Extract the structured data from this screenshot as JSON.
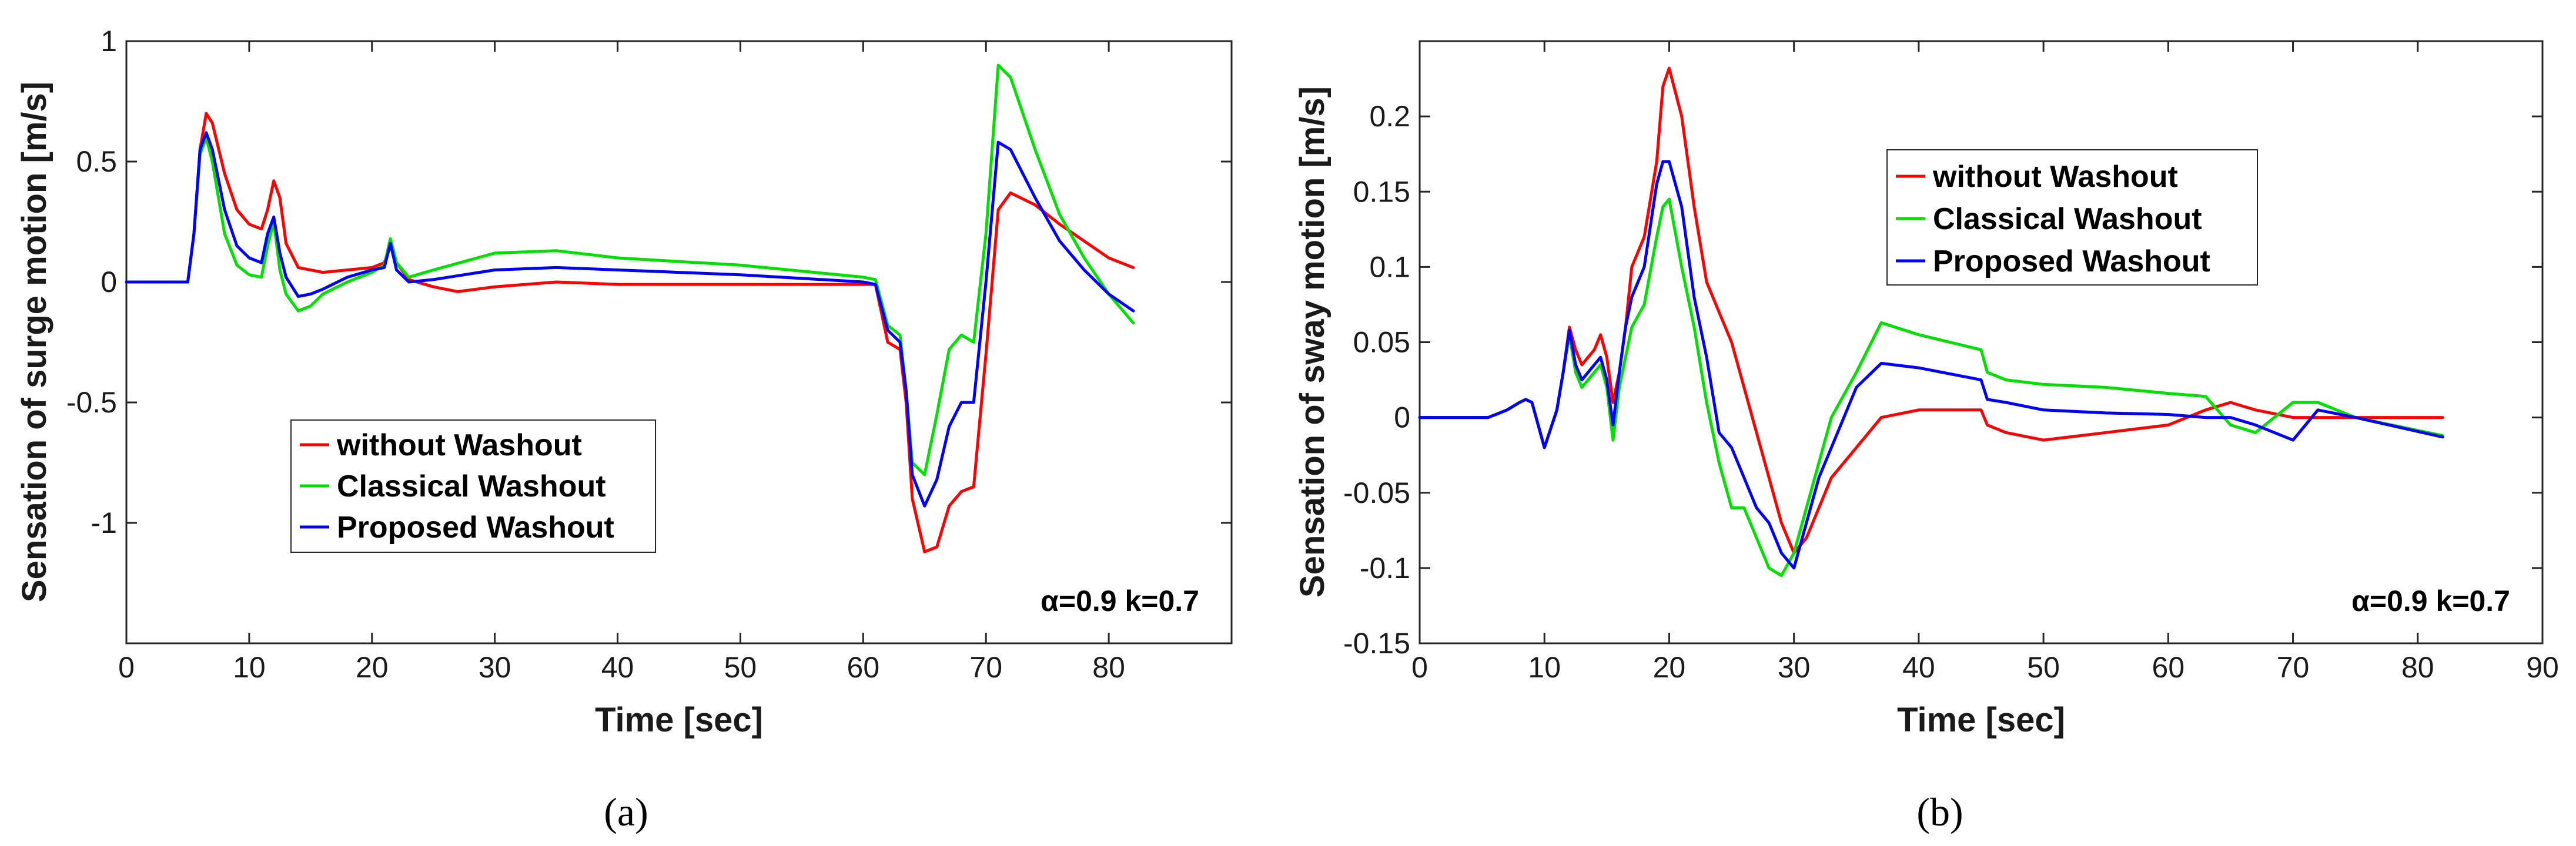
{
  "chart_data": [
    {
      "type": "line",
      "panel": "(a)",
      "title": "",
      "xlabel": "Time [sec]",
      "ylabel": "Sensation of surge motion [m/s]",
      "xlim": [
        0,
        90
      ],
      "ylim": [
        -1.5,
        1
      ],
      "xticks": [
        0,
        10,
        20,
        30,
        40,
        50,
        60,
        70,
        80
      ],
      "xtick_labels": [
        "0",
        "10",
        "20",
        "30",
        "40",
        "50",
        "60",
        "70",
        "80"
      ],
      "yticks": [
        -1,
        -0.5,
        0,
        0.5,
        1
      ],
      "ytick_labels": [
        "-1",
        "-0.5",
        "0",
        "0.5",
        "1"
      ],
      "annotation": "α=0.9  k=0.7",
      "legend": [
        "without Washout",
        "Classical Washout",
        "Proposed Washout"
      ],
      "series": [
        {
          "name": "without Washout",
          "color": "#ff0000",
          "x": [
            0,
            5,
            5.5,
            6,
            6.5,
            7,
            8,
            9,
            10,
            11,
            11.5,
            12,
            12.5,
            13,
            14,
            16,
            18,
            20,
            21,
            21.5,
            22,
            23,
            25,
            27,
            30,
            35,
            40,
            50,
            60,
            61,
            62,
            63,
            63.5,
            64,
            65,
            66,
            67,
            68,
            69,
            70,
            71,
            72,
            74,
            76,
            78,
            80,
            82
          ],
          "y": [
            0,
            0,
            0.2,
            0.55,
            0.7,
            0.66,
            0.45,
            0.3,
            0.24,
            0.22,
            0.3,
            0.42,
            0.35,
            0.16,
            0.06,
            0.04,
            0.05,
            0.06,
            0.08,
            0.15,
            0.08,
            0.01,
            -0.02,
            -0.04,
            -0.02,
            0,
            -0.01,
            -0.01,
            -0.01,
            -0.01,
            -0.25,
            -0.28,
            -0.5,
            -0.9,
            -1.12,
            -1.1,
            -0.93,
            -0.87,
            -0.85,
            -0.3,
            0.3,
            0.37,
            0.32,
            0.24,
            0.17,
            0.1,
            0.06
          ]
        },
        {
          "name": "Classical Washout",
          "color": "#00e000",
          "x": [
            0,
            5,
            5.5,
            6,
            6.5,
            7,
            8,
            9,
            10,
            11,
            11.5,
            12,
            12.5,
            13,
            14,
            15,
            16,
            18,
            20,
            21,
            21.5,
            22,
            23,
            25,
            30,
            35,
            40,
            50,
            60,
            61,
            62,
            63,
            63.5,
            64,
            65,
            66,
            67,
            68,
            69,
            70,
            71,
            72,
            74,
            76,
            78,
            80,
            82
          ],
          "y": [
            0,
            0,
            0.2,
            0.53,
            0.6,
            0.5,
            0.2,
            0.07,
            0.03,
            0.02,
            0.15,
            0.25,
            0.05,
            -0.05,
            -0.12,
            -0.1,
            -0.05,
            0,
            0.04,
            0.07,
            0.18,
            0.08,
            0.02,
            0.05,
            0.12,
            0.13,
            0.1,
            0.07,
            0.02,
            0.01,
            -0.18,
            -0.22,
            -0.45,
            -0.75,
            -0.8,
            -0.55,
            -0.28,
            -0.22,
            -0.25,
            0.2,
            0.9,
            0.85,
            0.55,
            0.28,
            0.1,
            -0.05,
            -0.17
          ]
        },
        {
          "name": "Proposed Washout",
          "color": "#0000ff",
          "x": [
            0,
            5,
            5.5,
            6,
            6.5,
            7,
            8,
            9,
            10,
            11,
            11.5,
            12,
            12.5,
            13,
            14,
            15,
            16,
            18,
            20,
            21,
            21.5,
            22,
            23,
            25,
            30,
            35,
            40,
            50,
            60,
            61,
            62,
            63,
            63.5,
            64,
            65,
            66,
            67,
            68,
            69,
            70,
            71,
            72,
            74,
            76,
            78,
            80,
            82
          ],
          "y": [
            0,
            0,
            0.2,
            0.55,
            0.62,
            0.55,
            0.3,
            0.15,
            0.1,
            0.08,
            0.2,
            0.27,
            0.12,
            0.02,
            -0.06,
            -0.05,
            -0.03,
            0.02,
            0.05,
            0.06,
            0.16,
            0.05,
            0,
            0.01,
            0.05,
            0.06,
            0.05,
            0.03,
            0,
            -0.01,
            -0.2,
            -0.25,
            -0.45,
            -0.8,
            -0.93,
            -0.82,
            -0.6,
            -0.5,
            -0.5,
            0,
            0.58,
            0.55,
            0.35,
            0.17,
            0.05,
            -0.05,
            -0.12
          ]
        }
      ]
    },
    {
      "type": "line",
      "panel": "(b)",
      "title": "",
      "xlabel": "Time [sec]",
      "ylabel": "Sensation of sway motion [m/s]",
      "xlim": [
        0,
        90
      ],
      "ylim": [
        -0.15,
        0.25
      ],
      "xticks": [
        0,
        10,
        20,
        30,
        40,
        50,
        60,
        70,
        80,
        90
      ],
      "xtick_labels": [
        "0",
        "10",
        "20",
        "30",
        "40",
        "50",
        "60",
        "70",
        "80",
        "90"
      ],
      "yticks": [
        -0.15,
        -0.1,
        -0.05,
        0,
        0.05,
        0.1,
        0.15,
        0.2
      ],
      "ytick_labels": [
        "-0.15",
        "-0.1",
        "-0.05",
        "0",
        "0.05",
        "0.1",
        "0.15",
        "0.2"
      ],
      "annotation": "α=0.9  k=0.7",
      "legend": [
        "without Washout",
        "Classical Washout",
        "Proposed Washout"
      ],
      "series": [
        {
          "name": "without Washout",
          "color": "#ff0000",
          "x": [
            0,
            5.5,
            7,
            8,
            8.5,
            9,
            10,
            11,
            11.5,
            12,
            12.5,
            13,
            14,
            14.5,
            15,
            15.5,
            16,
            16.5,
            17,
            18,
            19,
            19.5,
            20,
            21,
            22,
            23,
            24,
            25,
            26,
            28,
            29,
            30,
            31,
            32,
            33,
            35,
            37,
            40,
            45,
            45.5,
            47,
            50,
            55,
            60,
            63,
            65,
            67,
            70,
            72,
            75,
            82
          ],
          "y": [
            0,
            0,
            0.005,
            0.01,
            0.012,
            0.01,
            -0.02,
            0.005,
            0.03,
            0.06,
            0.045,
            0.035,
            0.045,
            0.055,
            0.04,
            0.01,
            0.03,
            0.06,
            0.1,
            0.12,
            0.17,
            0.22,
            0.232,
            0.2,
            0.14,
            0.09,
            0.07,
            0.05,
            0.02,
            -0.04,
            -0.07,
            -0.09,
            -0.08,
            -0.06,
            -0.04,
            -0.02,
            0,
            0.005,
            0.005,
            -0.005,
            -0.01,
            -0.015,
            -0.01,
            -0.005,
            0.005,
            0.01,
            0.005,
            0,
            0,
            0,
            0
          ]
        },
        {
          "name": "Classical Washout",
          "color": "#00e000",
          "x": [
            0,
            5.5,
            7,
            8,
            8.5,
            9,
            10,
            11,
            11.5,
            12,
            12.5,
            13,
            14,
            14.5,
            15,
            15.5,
            16,
            16.5,
            17,
            18,
            19,
            19.5,
            20,
            21,
            22,
            23,
            24,
            25,
            26,
            27,
            28,
            29,
            30,
            31,
            32,
            33,
            35,
            37,
            40,
            45,
            45.5,
            47,
            50,
            55,
            60,
            63,
            65,
            67,
            70,
            72,
            75,
            82
          ],
          "y": [
            0,
            0,
            0.005,
            0.01,
            0.012,
            0.01,
            -0.02,
            0.005,
            0.03,
            0.055,
            0.03,
            0.02,
            0.03,
            0.035,
            0.02,
            -0.015,
            0.02,
            0.04,
            0.06,
            0.075,
            0.12,
            0.14,
            0.145,
            0.1,
            0.06,
            0.01,
            -0.03,
            -0.06,
            -0.06,
            -0.08,
            -0.1,
            -0.105,
            -0.09,
            -0.06,
            -0.03,
            0,
            0.03,
            0.063,
            0.055,
            0.045,
            0.03,
            0.025,
            0.022,
            0.02,
            0.016,
            0.014,
            -0.005,
            -0.01,
            0.01,
            0.01,
            0,
            -0.012
          ]
        },
        {
          "name": "Proposed Washout",
          "color": "#0000ff",
          "x": [
            0,
            5.5,
            7,
            8,
            8.5,
            9,
            10,
            11,
            11.5,
            12,
            12.5,
            13,
            14,
            14.5,
            15,
            15.5,
            16,
            16.5,
            17,
            18,
            19,
            19.5,
            20,
            21,
            22,
            23,
            24,
            25,
            26,
            27,
            28,
            29,
            30,
            31,
            32,
            33,
            35,
            37,
            40,
            45,
            45.5,
            47,
            50,
            55,
            60,
            63,
            65,
            67,
            70,
            72,
            75,
            82
          ],
          "y": [
            0,
            0,
            0.005,
            0.01,
            0.012,
            0.01,
            -0.02,
            0.005,
            0.03,
            0.058,
            0.035,
            0.025,
            0.035,
            0.04,
            0.025,
            -0.005,
            0.03,
            0.06,
            0.08,
            0.1,
            0.155,
            0.17,
            0.17,
            0.14,
            0.08,
            0.04,
            -0.01,
            -0.02,
            -0.04,
            -0.06,
            -0.07,
            -0.09,
            -0.1,
            -0.07,
            -0.04,
            -0.02,
            0.02,
            0.036,
            0.033,
            0.025,
            0.012,
            0.01,
            0.005,
            0.003,
            0.002,
            0,
            0,
            -0.005,
            -0.015,
            0.005,
            0,
            -0.013
          ]
        }
      ]
    }
  ]
}
